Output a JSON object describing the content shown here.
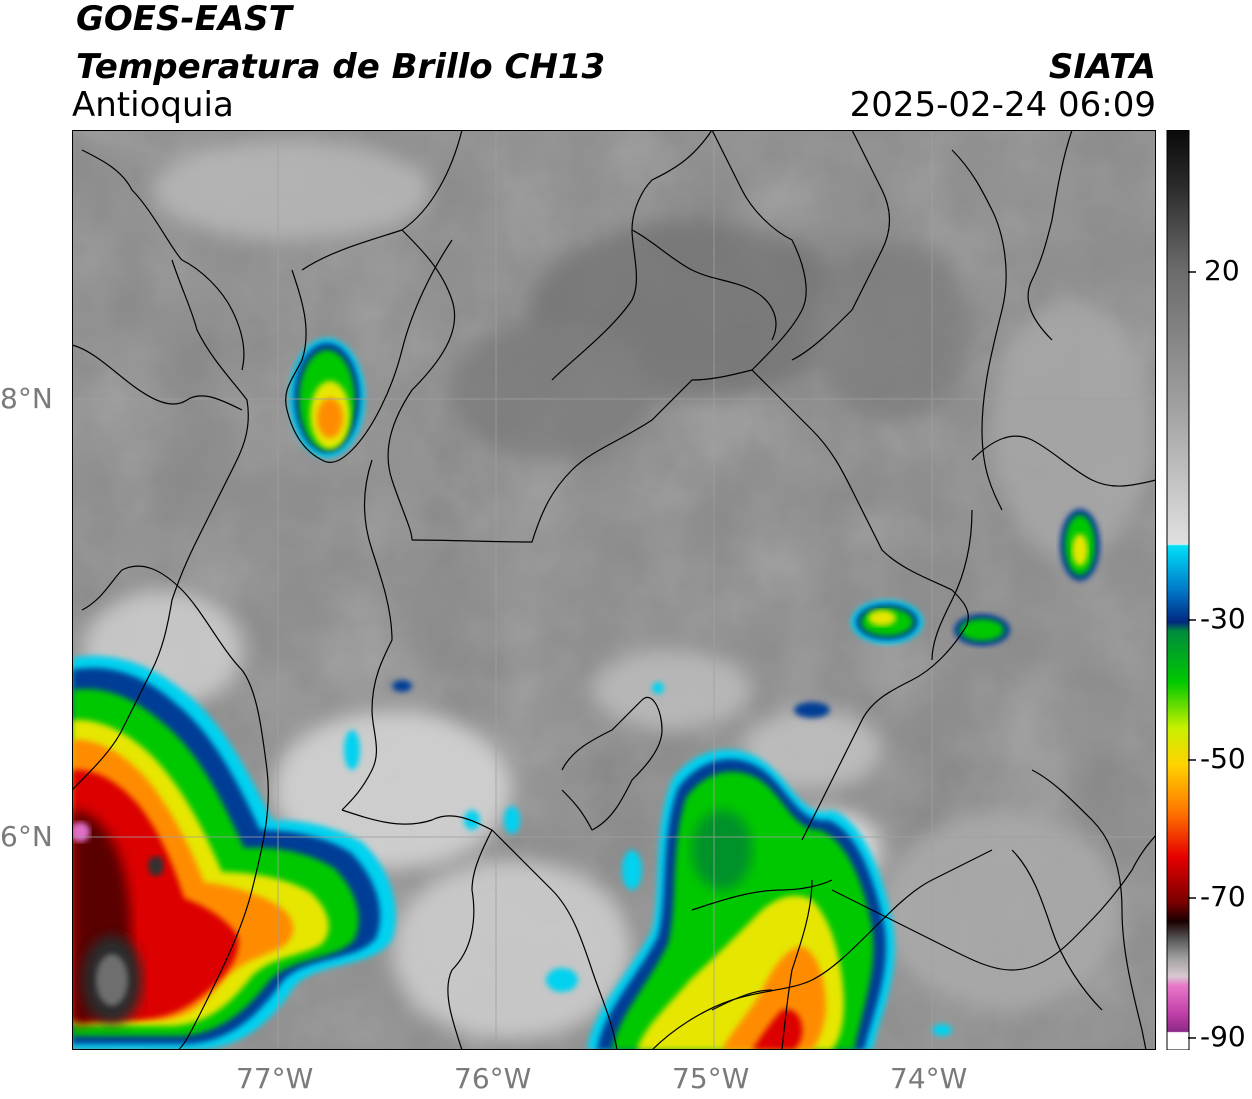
{
  "header": {
    "satellite": "GOES-EAST",
    "product": "Temperatura de Brillo CH13",
    "region": "Antioquia",
    "agency": "SIATA",
    "datetime": "2025-02-24 06:09"
  },
  "axes": {
    "lon_ticks": [
      "77°W",
      "76°W",
      "75°W",
      "74°W"
    ],
    "lat_ticks": [
      "8°N",
      "6°N"
    ]
  },
  "colorbar": {
    "ticks": [
      "20",
      "-30",
      "-50",
      "-70",
      "-90"
    ],
    "colors": {
      "warm_gray": "#8c8c8c",
      "white": "#f4f4f4",
      "cyan": "#00d2f0",
      "blue": "#003c96",
      "green": "#00c800",
      "yellow": "#e6e600",
      "orange": "#ff8c00",
      "red": "#dc0000",
      "dark_red": "#460000",
      "magenta": "#b4329b"
    }
  },
  "map": {
    "ocean_color": "#7e7e7e",
    "land_color": "#8a8a8a",
    "border_color": "#000000",
    "grid_color": "#9a9a9a"
  }
}
